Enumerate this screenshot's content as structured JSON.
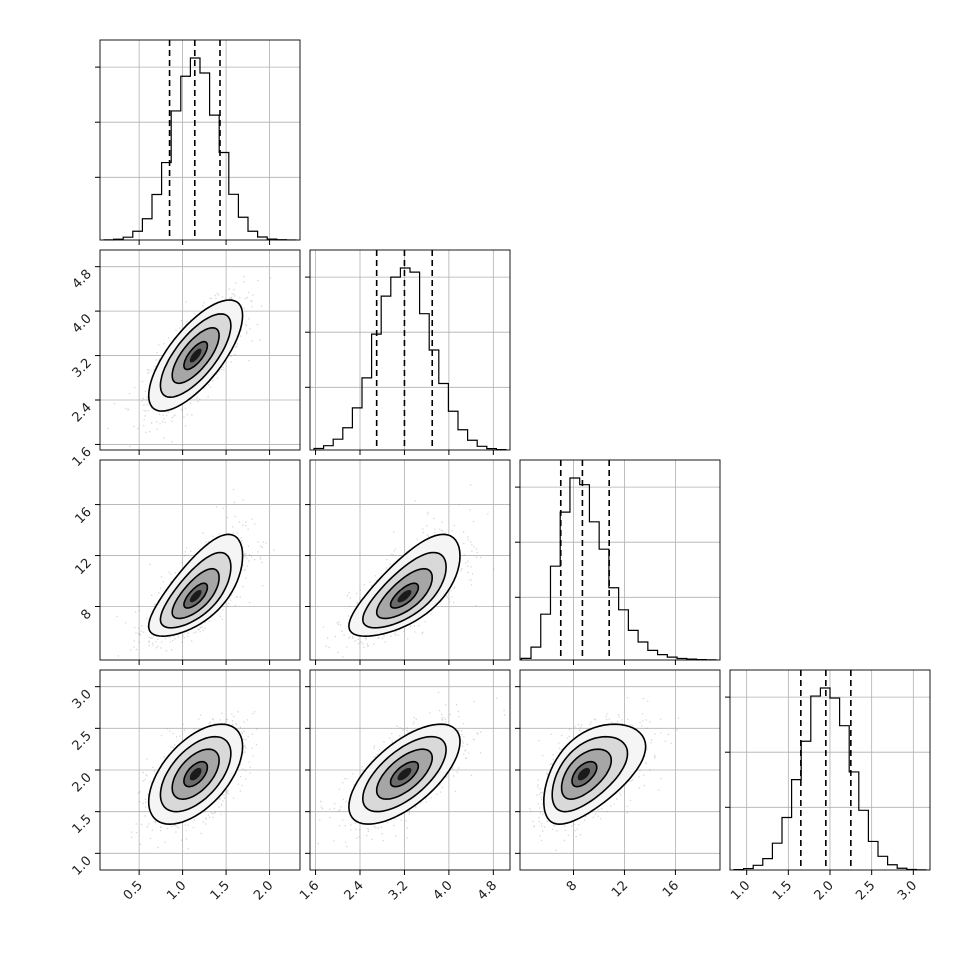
{
  "chart_data": {
    "type": "corner",
    "params": [
      {
        "index": 0,
        "range": [
          0.05,
          2.35
        ],
        "ticks": [
          0.5,
          1.0,
          1.5,
          2.0
        ],
        "tick_labels": [
          "0.5",
          "1.0",
          "1.5",
          "2.0"
        ],
        "mean": 1.15,
        "sd": 0.27,
        "skew": 0,
        "quantiles": [
          0.85,
          1.14,
          1.43
        ]
      },
      {
        "index": 1,
        "range": [
          1.5,
          5.1
        ],
        "ticks": [
          1.6,
          2.4,
          3.2,
          4.0,
          4.8
        ],
        "tick_labels": [
          "1.6",
          "2.4",
          "3.2",
          "4.0",
          "4.8"
        ],
        "mean": 3.2,
        "sd": 0.5,
        "skew": 0,
        "quantiles": [
          2.7,
          3.2,
          3.7
        ]
      },
      {
        "index": 2,
        "range": [
          3.8,
          19.5
        ],
        "ticks": [
          8,
          12,
          16
        ],
        "tick_labels": [
          "8",
          "12",
          "16"
        ],
        "mean": 8.8,
        "sd": 1.9,
        "skew": 1,
        "quantiles": [
          7.0,
          8.7,
          10.8
        ]
      },
      {
        "index": 3,
        "range": [
          0.8,
          3.2
        ],
        "ticks": [
          1.0,
          1.5,
          2.0,
          2.5,
          3.0
        ],
        "tick_labels": [
          "1.0",
          "1.5",
          "2.0",
          "2.5",
          "3.0"
        ],
        "mean": 1.95,
        "sd": 0.3,
        "skew": 0,
        "quantiles": [
          1.65,
          1.95,
          2.25
        ]
      }
    ],
    "correlations": {
      "0-1": 0.72,
      "0-2": 0.7,
      "1-2": 0.7,
      "0-3": 0.55,
      "1-3": 0.65,
      "2-3": 0.55
    },
    "contour_levels_sigma": [
      0.5,
      1.0,
      1.5,
      2.0
    ],
    "grid": true,
    "title": "",
    "colors": {
      "scatter": "#8c8c8c",
      "density": "#000000",
      "lines": "#000000"
    }
  }
}
